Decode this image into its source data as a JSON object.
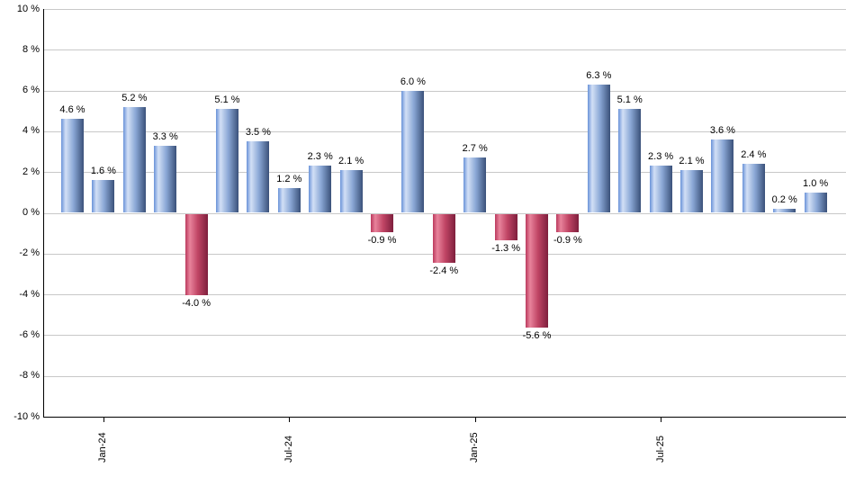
{
  "chart_data": {
    "type": "bar",
    "title": "",
    "unit": "%",
    "values": [
      4.6,
      1.6,
      5.2,
      3.3,
      -4.0,
      5.1,
      3.5,
      1.2,
      2.3,
      2.1,
      -0.9,
      6.0,
      -2.4,
      2.7,
      -1.3,
      -5.6,
      -0.9,
      6.3,
      5.1,
      2.3,
      2.1,
      3.6,
      2.4,
      0.2,
      1.0
    ],
    "bar_count": 25,
    "value_label_suffix": " %",
    "x_ticks": [
      {
        "label": "Jan-24",
        "bar_index": 1
      },
      {
        "label": "Jul-24",
        "bar_index": 7
      },
      {
        "label": "Jan-25",
        "bar_index": 13
      },
      {
        "label": "Jul-25",
        "bar_index": 19
      }
    ],
    "y_tick_labels": [
      "10 %",
      "8 %",
      "6 %",
      "4 %",
      "2 %",
      "0 %",
      "-2 %",
      "-4 %",
      "-6 %",
      "-8 %",
      "-10 %"
    ],
    "ylim": [
      -10,
      10
    ],
    "grid_step_pct": 2,
    "grid": true,
    "legend": null,
    "colors": {
      "positive_edge": "#6a92d8",
      "positive_light": "#d2e0f6",
      "positive_mid": "#8aa7d5",
      "positive_dark": "#3a517a",
      "negative_edge": "#bb3a5e",
      "negative_light": "#e8839b",
      "negative_mid": "#c04565",
      "negative_dark": "#7e1f3d",
      "gridline": "#c8c8c8",
      "axis": "#000000",
      "background": "#ffffff",
      "label_text": "#000000"
    }
  }
}
